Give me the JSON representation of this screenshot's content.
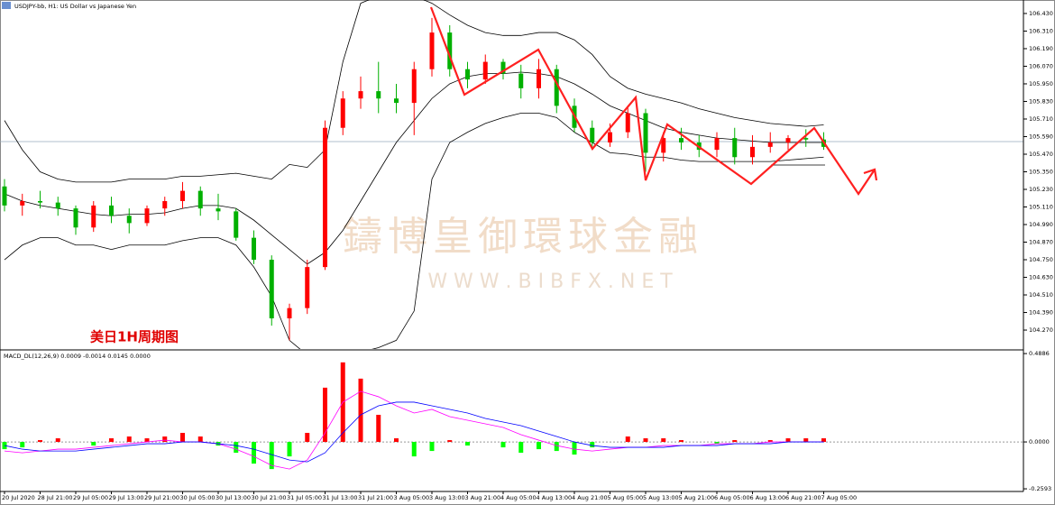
{
  "chart_data": [
    {
      "type": "candlestick",
      "title": "USDJPY-bb, H1:  US Dollar vs Japanese Yen",
      "annotations": [
        "美日1H周期图"
      ],
      "watermark": [
        "鑄博皇御環球金融",
        "W W W . B I B F X . N E T"
      ],
      "categories": [
        "20 Jul 2020",
        null,
        "28 Jul 21:00",
        null,
        "29 Jul 05:00",
        null,
        "29 Jul 13:00",
        null,
        "29 Jul 21:00",
        null,
        "30 Jul 05:00",
        null,
        "30 Jul 13:00",
        null,
        "30 Jul 21:00",
        null,
        "31 Jul 05:00",
        null,
        "31 Jul 13:00",
        null,
        "31 Jul 21:00",
        null,
        "3 Aug 05:00",
        null,
        "3 Aug 13:00",
        null,
        "3 Aug 21:00",
        null,
        "4 Aug 05:00",
        null,
        "4 Aug 13:00",
        null,
        "4 Aug 21:00",
        null,
        "5 Aug 05:00",
        null,
        "5 Aug 13:00",
        null,
        "5 Aug 21:00",
        null,
        "6 Aug 05:00",
        null,
        "6 Aug 13:00",
        null,
        "6 Aug 21:00",
        null,
        "7 Aug 05:00"
      ],
      "open": [
        105.25,
        105.12,
        105.15,
        105.14,
        105.1,
        104.97,
        105.12,
        105.05,
        105.0,
        105.1,
        105.15,
        105.22,
        105.1,
        105.08,
        104.9,
        104.75,
        104.35,
        104.42,
        104.7,
        105.65,
        105.85,
        105.9,
        105.85,
        105.82,
        106.05,
        106.3,
        106.05,
        105.98,
        106.1,
        106.02,
        105.92,
        106.05,
        105.8,
        105.65,
        105.55,
        105.62,
        105.75,
        105.48,
        105.58,
        105.55,
        105.5,
        105.58,
        105.45,
        105.52,
        105.55,
        105.58,
        105.57
      ],
      "high": [
        105.3,
        105.2,
        105.22,
        105.18,
        105.12,
        105.15,
        105.18,
        105.1,
        105.12,
        105.18,
        105.28,
        105.25,
        105.2,
        105.1,
        104.95,
        104.78,
        104.45,
        104.75,
        105.7,
        105.9,
        106.0,
        106.1,
        105.95,
        106.1,
        106.4,
        106.35,
        106.1,
        106.15,
        106.12,
        106.08,
        106.12,
        106.08,
        105.85,
        105.7,
        105.68,
        105.8,
        105.78,
        105.62,
        105.65,
        105.6,
        105.62,
        105.65,
        105.6,
        105.62,
        105.6,
        105.64,
        105.62
      ],
      "low": [
        105.08,
        105.05,
        105.1,
        105.05,
        104.92,
        104.94,
        105.0,
        104.93,
        104.98,
        105.05,
        105.1,
        105.05,
        105.02,
        104.88,
        104.72,
        104.3,
        104.2,
        104.38,
        104.68,
        105.6,
        105.78,
        105.75,
        105.75,
        105.6,
        106.0,
        106.0,
        105.92,
        105.95,
        105.98,
        105.85,
        105.85,
        105.75,
        105.62,
        105.5,
        105.52,
        105.58,
        105.35,
        105.42,
        105.5,
        105.45,
        105.45,
        105.4,
        105.4,
        105.48,
        105.5,
        105.52,
        105.5
      ],
      "close": [
        105.12,
        105.15,
        105.14,
        105.1,
        104.97,
        105.12,
        105.05,
        105.0,
        105.1,
        105.15,
        105.22,
        105.1,
        105.08,
        104.9,
        104.75,
        104.35,
        104.42,
        104.7,
        105.65,
        105.85,
        105.9,
        105.85,
        105.82,
        106.05,
        106.3,
        106.05,
        105.98,
        106.1,
        106.02,
        105.92,
        106.05,
        105.8,
        105.65,
        105.55,
        105.62,
        105.75,
        105.48,
        105.58,
        105.55,
        105.5,
        105.58,
        105.45,
        105.52,
        105.55,
        105.58,
        105.57,
        105.52
      ],
      "up_color": "#ff0000",
      "down_color": "#00b000",
      "series": [
        {
          "color": "#000000",
          "values": [
            105.7,
            105.5,
            105.35,
            105.3,
            105.28,
            105.28,
            105.28,
            105.3,
            105.3,
            105.3,
            105.32,
            105.32,
            105.33,
            105.34,
            105.32,
            105.3,
            105.4,
            105.38,
            105.5,
            106.1,
            106.5,
            106.55,
            106.55,
            106.55,
            106.5,
            106.42,
            106.35,
            106.3,
            106.28,
            106.28,
            106.3,
            106.3,
            106.25,
            106.15,
            106.0,
            105.92,
            105.88,
            105.85,
            105.82,
            105.78,
            105.75,
            105.72,
            105.7,
            105.68,
            105.67,
            105.66,
            105.67
          ]
        },
        {
          "color": "#000000",
          "values": [
            105.2,
            105.15,
            105.12,
            105.1,
            105.08,
            105.06,
            105.05,
            105.06,
            105.06,
            105.07,
            105.1,
            105.12,
            105.12,
            105.1,
            105.02,
            104.92,
            104.82,
            104.72,
            104.8,
            104.95,
            105.15,
            105.35,
            105.55,
            105.7,
            105.85,
            105.95,
            106.0,
            106.02,
            106.02,
            106.03,
            106.02,
            106.0,
            105.95,
            105.88,
            105.8,
            105.75,
            105.7,
            105.65,
            105.62,
            105.6,
            105.58,
            105.57,
            105.56,
            105.55,
            105.55,
            105.55,
            105.55
          ]
        },
        {
          "color": "#000000",
          "values": [
            104.75,
            104.85,
            104.9,
            104.9,
            104.85,
            104.85,
            104.82,
            104.85,
            104.85,
            104.85,
            104.88,
            104.9,
            104.9,
            104.85,
            104.7,
            104.5,
            104.2,
            104.1,
            104.1,
            104.1,
            104.12,
            104.15,
            104.2,
            104.4,
            105.3,
            105.55,
            105.62,
            105.68,
            105.72,
            105.75,
            105.75,
            105.72,
            105.62,
            105.55,
            105.48,
            105.47,
            105.45,
            105.45,
            105.43,
            105.42,
            105.42,
            105.42,
            105.42,
            105.42,
            105.43,
            105.44,
            105.45
          ]
        }
      ],
      "ylim": [
        104.141,
        106.522
      ],
      "yticks": [
        {
          "value": 106.43,
          "label": "106.430"
        },
        {
          "value": 106.31,
          "label": "106.310"
        },
        {
          "value": 106.19,
          "label": "106.190"
        },
        {
          "value": 106.07,
          "label": "106.070"
        },
        {
          "value": 105.95,
          "label": "105.950"
        },
        {
          "value": 105.83,
          "label": "105.830"
        },
        {
          "value": 105.71,
          "label": "105.710"
        },
        {
          "value": 105.59,
          "label": "105.590"
        },
        {
          "value": 105.47,
          "label": "105.470"
        },
        {
          "value": 105.35,
          "label": "105.350"
        },
        {
          "value": 105.23,
          "label": "105.230"
        },
        {
          "value": 105.11,
          "label": "105.110"
        },
        {
          "value": 104.99,
          "label": "104.990"
        },
        {
          "value": 104.87,
          "label": "104.870"
        },
        {
          "value": 104.75,
          "label": "104.750"
        },
        {
          "value": 104.63,
          "label": "104.630"
        },
        {
          "value": 104.51,
          "label": "104.510"
        },
        {
          "value": 104.39,
          "label": "104.390"
        },
        {
          "value": 104.27,
          "label": "104.270"
        }
      ]
    },
    {
      "type": "macd",
      "title": "MACD_DL(12,26,9) 0.0009 -0.0014 0.0145 0.0000",
      "values": [
        -0.04,
        -0.03,
        0.01,
        0.02,
        0.0,
        -0.02,
        0.02,
        0.03,
        0.02,
        0.03,
        0.05,
        0.03,
        -0.02,
        -0.06,
        -0.12,
        -0.15,
        -0.08,
        0.05,
        0.3,
        0.44,
        0.35,
        0.15,
        0.02,
        -0.08,
        -0.05,
        0.01,
        -0.02,
        0.0,
        -0.03,
        -0.06,
        -0.04,
        -0.05,
        -0.07,
        -0.03,
        0.0,
        0.03,
        0.02,
        0.02,
        0.01,
        0.0,
        -0.01,
        0.01,
        0.0,
        0.01,
        0.02,
        0.02,
        0.02
      ],
      "up_color": "#ff0000",
      "down_color": "#00ff00",
      "series": [
        {
          "color": "#ff00ff",
          "values": [
            -0.05,
            -0.06,
            -0.05,
            -0.04,
            -0.04,
            -0.03,
            -0.02,
            -0.01,
            0.0,
            0.01,
            0.0,
            0.0,
            -0.01,
            -0.04,
            -0.08,
            -0.13,
            -0.15,
            -0.1,
            0.05,
            0.22,
            0.28,
            0.25,
            0.2,
            0.16,
            0.18,
            0.14,
            0.12,
            0.1,
            0.08,
            0.04,
            0.01,
            -0.02,
            -0.04,
            -0.05,
            -0.04,
            -0.03,
            -0.03,
            -0.02,
            -0.02,
            -0.02,
            -0.01,
            -0.01,
            -0.01,
            0.0,
            0.0,
            0.0,
            0.0
          ]
        },
        {
          "color": "#0000ff",
          "values": [
            -0.02,
            -0.04,
            -0.05,
            -0.05,
            -0.05,
            -0.04,
            -0.03,
            -0.02,
            -0.01,
            -0.01,
            0.0,
            0.0,
            -0.01,
            -0.02,
            -0.04,
            -0.07,
            -0.1,
            -0.11,
            -0.06,
            0.05,
            0.15,
            0.2,
            0.22,
            0.22,
            0.2,
            0.18,
            0.16,
            0.13,
            0.11,
            0.09,
            0.06,
            0.03,
            0.0,
            -0.02,
            -0.03,
            -0.03,
            -0.03,
            -0.03,
            -0.02,
            -0.02,
            -0.02,
            -0.01,
            -0.01,
            -0.01,
            0.0,
            0.0,
            0.0
          ]
        }
      ],
      "ylim": [
        -0.264,
        0.504
      ],
      "yticks": [
        0.4886,
        {
          "value": 0,
          "label": "0.0000"
        },
        -0.2593
      ]
    }
  ]
}
